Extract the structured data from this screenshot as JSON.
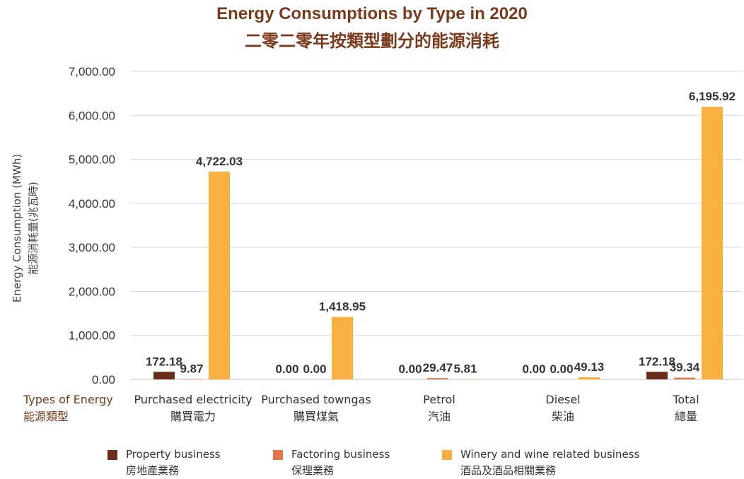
{
  "title": {
    "line1": "Energy Consumptions by Type in 2020",
    "line2": "二零二零年按類型劃分的能源消耗"
  },
  "colors": {
    "property": "#6b2d1a",
    "factoring": "#e8744a",
    "winery": "#f9b040",
    "grid": "#d9d9d9",
    "accent": "#7a3a1c"
  },
  "chart_data": {
    "type": "bar",
    "ylabel": [
      "Energy Consumption (MWh)",
      "能源消耗量(兆瓦時)"
    ],
    "xlabel": [
      "Types of Energy",
      "能源類型"
    ],
    "ylim": [
      0,
      7000
    ],
    "yticks": [
      "0.00",
      "1,000.00",
      "2,000.00",
      "3,000.00",
      "4,000.00",
      "5,000.00",
      "6,000.00",
      "7,000.00"
    ],
    "grid": true,
    "legend_position": "bottom",
    "categories": [
      [
        "Purchased electricity",
        "購買電力"
      ],
      [
        "Purchased towngas",
        "購買煤氣"
      ],
      [
        "Petrol",
        "汽油"
      ],
      [
        "Diesel",
        "柴油"
      ],
      [
        "Total",
        "總量"
      ]
    ],
    "series": [
      {
        "name": [
          "Property business",
          "房地產業務"
        ],
        "values": [
          172.18,
          0.0,
          0.0,
          0.0,
          172.18
        ],
        "labels": [
          "172.18",
          "0.00",
          "0.00",
          "0.00",
          "172.18"
        ]
      },
      {
        "name": [
          "Factoring business",
          "保理業務"
        ],
        "values": [
          9.87,
          0.0,
          29.47,
          0.0,
          39.34
        ],
        "labels": [
          "9.87",
          "0.00",
          "29.47",
          "0.00",
          "39.34"
        ]
      },
      {
        "name": [
          "Winery and wine related business",
          "酒品及酒品相關業務"
        ],
        "values": [
          4722.03,
          1418.95,
          5.81,
          49.13,
          6195.92
        ],
        "labels": [
          "4,722.03",
          "1,418.95",
          "5.81",
          "49.13",
          "6,195.92"
        ]
      }
    ]
  }
}
